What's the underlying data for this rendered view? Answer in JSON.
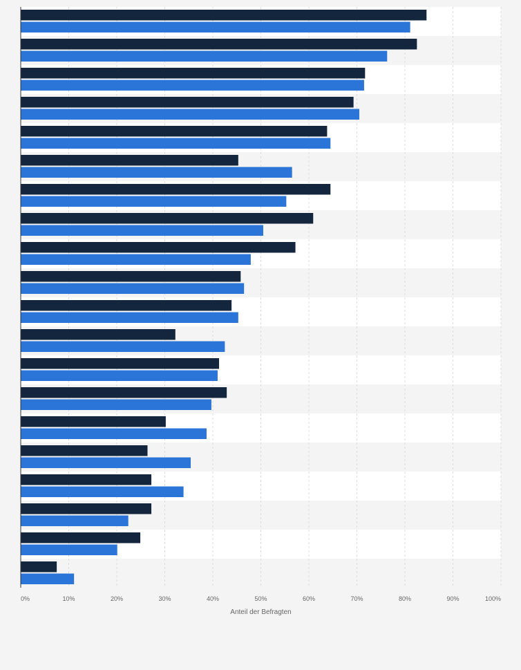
{
  "chart_data": {
    "type": "bar",
    "orientation": "horizontal",
    "xlabel": "Anteil der Befragten",
    "xlim": [
      0,
      100
    ],
    "xticks": [
      "0%",
      "10%",
      "20%",
      "30%",
      "40%",
      "50%",
      "60%",
      "70%",
      "80%",
      "90%",
      "100%"
    ],
    "grid": true,
    "category_count": 20,
    "series": [
      {
        "color": "#13263d",
        "values": [
          84.5,
          82.5,
          71.7,
          69.3,
          63.8,
          45.3,
          64.5,
          60.9,
          57.2,
          45.8,
          43.9,
          32.2,
          41.3,
          42.9,
          30.2,
          26.4,
          27.2,
          27.2,
          24.9,
          7.5
        ]
      },
      {
        "color": "#2b75d8",
        "values": [
          81.1,
          76.3,
          71.5,
          70.5,
          64.5,
          56.5,
          55.3,
          50.5,
          47.9,
          46.5,
          45.3,
          42.5,
          41.0,
          39.7,
          38.7,
          35.4,
          33.9,
          22.4,
          20.1,
          11.1
        ]
      }
    ]
  }
}
